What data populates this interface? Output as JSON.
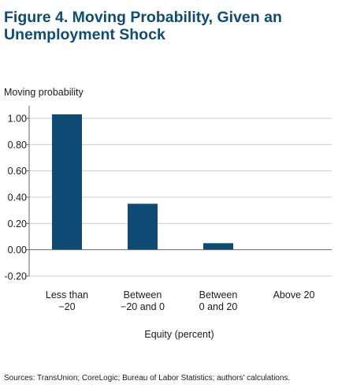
{
  "figure": {
    "title_line1": "Figure 4. Moving Probability, Given an",
    "title_line2": "Unemployment Shock",
    "source_note": "Sources: TransUnion; CoreLogic; Bureau of Labor Statistics; authors' calculations."
  },
  "colors": {
    "bar": "#0f4c75",
    "title": "#0f4c75",
    "gridline": "#cccccc",
    "axis": "#666666"
  },
  "chart_data": {
    "type": "bar",
    "ylabel": "Moving probability",
    "xlabel": "Equity (percent)",
    "categories": [
      [
        "Less than",
        "−20"
      ],
      [
        "Between",
        "−20 and 0"
      ],
      [
        "Between",
        "0 and 20"
      ],
      [
        "Above 20"
      ]
    ],
    "values": [
      1.03,
      0.35,
      0.05,
      0.0
    ],
    "ylim": [
      -0.2,
      1.0
    ],
    "yticks": [
      1.0,
      0.8,
      0.6,
      0.4,
      0.2,
      0.0,
      -0.2
    ],
    "ytick_labels": [
      "1.00",
      "0.80",
      "0.60",
      "0.40",
      "0.20",
      "0.00",
      "-0.20"
    ],
    "grid": true,
    "legend": "none"
  }
}
